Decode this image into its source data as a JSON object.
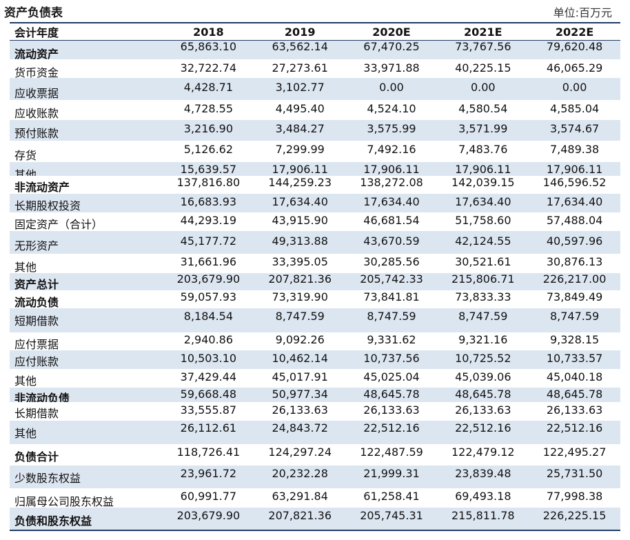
{
  "header": {
    "title": "资产负债表",
    "unit": "单位:百万元"
  },
  "columns": [
    "会计年度",
    "2018",
    "2019",
    "2020E",
    "2021E",
    "2022E"
  ],
  "rows": [
    {
      "label": "流动资产",
      "bold": true,
      "alt": true,
      "h": 27,
      "lo": 6,
      "no": -5,
      "values": [
        "65,863.10",
        "63,562.14",
        "67,470.25",
        "73,767.56",
        "79,620.48"
      ]
    },
    {
      "label": "货币资金",
      "bold": false,
      "alt": false,
      "h": 27,
      "lo": 6,
      "no": -1,
      "values": [
        "32,722.74",
        "27,273.61",
        "33,971.88",
        "40,225.15",
        "46,065.29"
      ]
    },
    {
      "label": "应收票据",
      "bold": false,
      "alt": true,
      "h": 32,
      "lo": 7,
      "no": -2,
      "values": [
        "4,428.71",
        "3,102.77",
        "0.00",
        "0.00",
        "0.00"
      ]
    },
    {
      "label": "应收账款",
      "bold": false,
      "alt": false,
      "h": 29,
      "lo": 5,
      "no": -2,
      "values": [
        "4,728.55",
        "4,495.40",
        "4,524.10",
        "4,580.54",
        "4,585.04"
      ]
    },
    {
      "label": "预付账款",
      "bold": false,
      "alt": true,
      "h": 30,
      "lo": 5,
      "no": -2,
      "values": [
        "3,216.90",
        "3,484.27",
        "3,575.99",
        "3,571.99",
        "3,574.67"
      ]
    },
    {
      "label": "存货",
      "bold": false,
      "alt": false,
      "h": 31,
      "lo": 6,
      "no": -3,
      "values": [
        "5,126.62",
        "7,299.99",
        "7,492.16",
        "7,483.76",
        "7,489.38"
      ]
    },
    {
      "label": "其他",
      "bold": false,
      "alt": true,
      "h": 20,
      "lo": 9,
      "no": 1,
      "values": [
        "15,639.57",
        "17,906.11",
        "17,906.11",
        "17,906.11",
        "17,906.11"
      ]
    },
    {
      "label": "非流动资产",
      "bold": true,
      "alt": false,
      "h": 26,
      "lo": 4,
      "no": -3,
      "values": [
        "137,816.80",
        "144,259.23",
        "138,272.08",
        "142,039.15",
        "146,596.52"
      ]
    },
    {
      "label": "长期股权投资",
      "bold": false,
      "alt": true,
      "h": 27,
      "lo": 4,
      "no": -2,
      "values": [
        "16,683.93",
        "17,634.40",
        "17,634.40",
        "17,634.40",
        "17,634.40"
      ]
    },
    {
      "label": "固定资产（合计）",
      "bold": false,
      "alt": false,
      "h": 27,
      "lo": 4,
      "no": -2,
      "values": [
        "44,293.19",
        "43,915.90",
        "46,681.54",
        "51,758.60",
        "57,488.04"
      ]
    },
    {
      "label": "无形资产",
      "bold": false,
      "alt": true,
      "h": 33,
      "lo": 5,
      "no": -2,
      "values": [
        "45,177.72",
        "49,313.88",
        "43,670.59",
        "42,124.55",
        "40,597.96"
      ]
    },
    {
      "label": "其他",
      "bold": false,
      "alt": false,
      "h": 28,
      "lo": 6,
      "no": -2,
      "values": [
        "31,661.96",
        "33,395.05",
        "30,285.56",
        "30,521.61",
        "30,876.13"
      ]
    },
    {
      "label": "资产总计",
      "bold": true,
      "alt": true,
      "h": 25,
      "lo": 4,
      "no": -4,
      "values": [
        "203,679.90",
        "207,821.36",
        "205,742.33",
        "215,806.71",
        "226,217.00"
      ]
    },
    {
      "label": "流动负债",
      "bold": true,
      "alt": false,
      "h": 26,
      "lo": 5,
      "no": -3,
      "values": [
        "59,057.93",
        "73,319.90",
        "73,841.81",
        "73,833.33",
        "73,849.49"
      ]
    },
    {
      "label": "短期借款",
      "bold": false,
      "alt": true,
      "h": 35,
      "lo": 1,
      "no": -6,
      "values": [
        "8,184.54",
        "8,747.59",
        "8,747.59",
        "8,747.59",
        "8,747.59"
      ]
    },
    {
      "label": "应付票据",
      "bold": false,
      "alt": false,
      "h": 26,
      "lo": 5,
      "no": -2,
      "values": [
        "2,940.86",
        "9,092.26",
        "9,331.62",
        "9,321.16",
        "9,328.15"
      ]
    },
    {
      "label": "应付账款",
      "bold": false,
      "alt": true,
      "h": 27,
      "lo": 3,
      "no": -2,
      "values": [
        "10,503.10",
        "10,462.14",
        "10,737.56",
        "10,725.52",
        "10,733.57"
      ]
    },
    {
      "label": "其他",
      "bold": false,
      "alt": false,
      "h": 27,
      "lo": 4,
      "no": -2,
      "values": [
        "37,429.44",
        "45,017.91",
        "45,025.04",
        "45,039.06",
        "45,040.18"
      ]
    },
    {
      "label": "非流动负债",
      "bold": true,
      "alt": true,
      "h": 21,
      "lo": 5,
      "no": -1,
      "values": [
        "59,668.48",
        "50,977.34",
        "48,645.78",
        "48,645.78",
        "48,645.78"
      ]
    },
    {
      "label": "长期借款",
      "bold": false,
      "alt": false,
      "h": 27,
      "lo": 3,
      "no": -2,
      "values": [
        "33,555.87",
        "26,133.63",
        "26,133.63",
        "26,133.63",
        "26,133.63"
      ]
    },
    {
      "label": "其他",
      "bold": false,
      "alt": true,
      "h": 34,
      "lo": 2,
      "no": -6,
      "values": [
        "26,112.61",
        "24,843.72",
        "22,512.16",
        "22,512.16",
        "22,512.16"
      ]
    },
    {
      "label": "负债合计",
      "bold": true,
      "alt": false,
      "h": 31,
      "lo": 3,
      "no": -4,
      "values": [
        "118,726.41",
        "124,297.24",
        "122,487.59",
        "122,479.12",
        "122,495.27"
      ]
    },
    {
      "label": "少数股东权益",
      "bold": false,
      "alt": true,
      "h": 33,
      "lo": 2,
      "no": -5,
      "values": [
        "23,961.72",
        "20,232.28",
        "21,999.31",
        "23,839.48",
        "25,731.50"
      ]
    },
    {
      "label": "归属母公司股东权益",
      "bold": false,
      "alt": false,
      "h": 28,
      "lo": 6,
      "no": -2,
      "values": [
        "60,991.77",
        "63,291.84",
        "61,258.41",
        "69,493.18",
        "77,998.38"
      ]
    },
    {
      "label": "负债和股东权益",
      "bold": true,
      "alt": true,
      "h": 32,
      "lo": 4,
      "no": -4,
      "values": [
        "203,679.90",
        "207,821.36",
        "205,745.31",
        "215,811.78",
        "226,225.15"
      ]
    }
  ]
}
